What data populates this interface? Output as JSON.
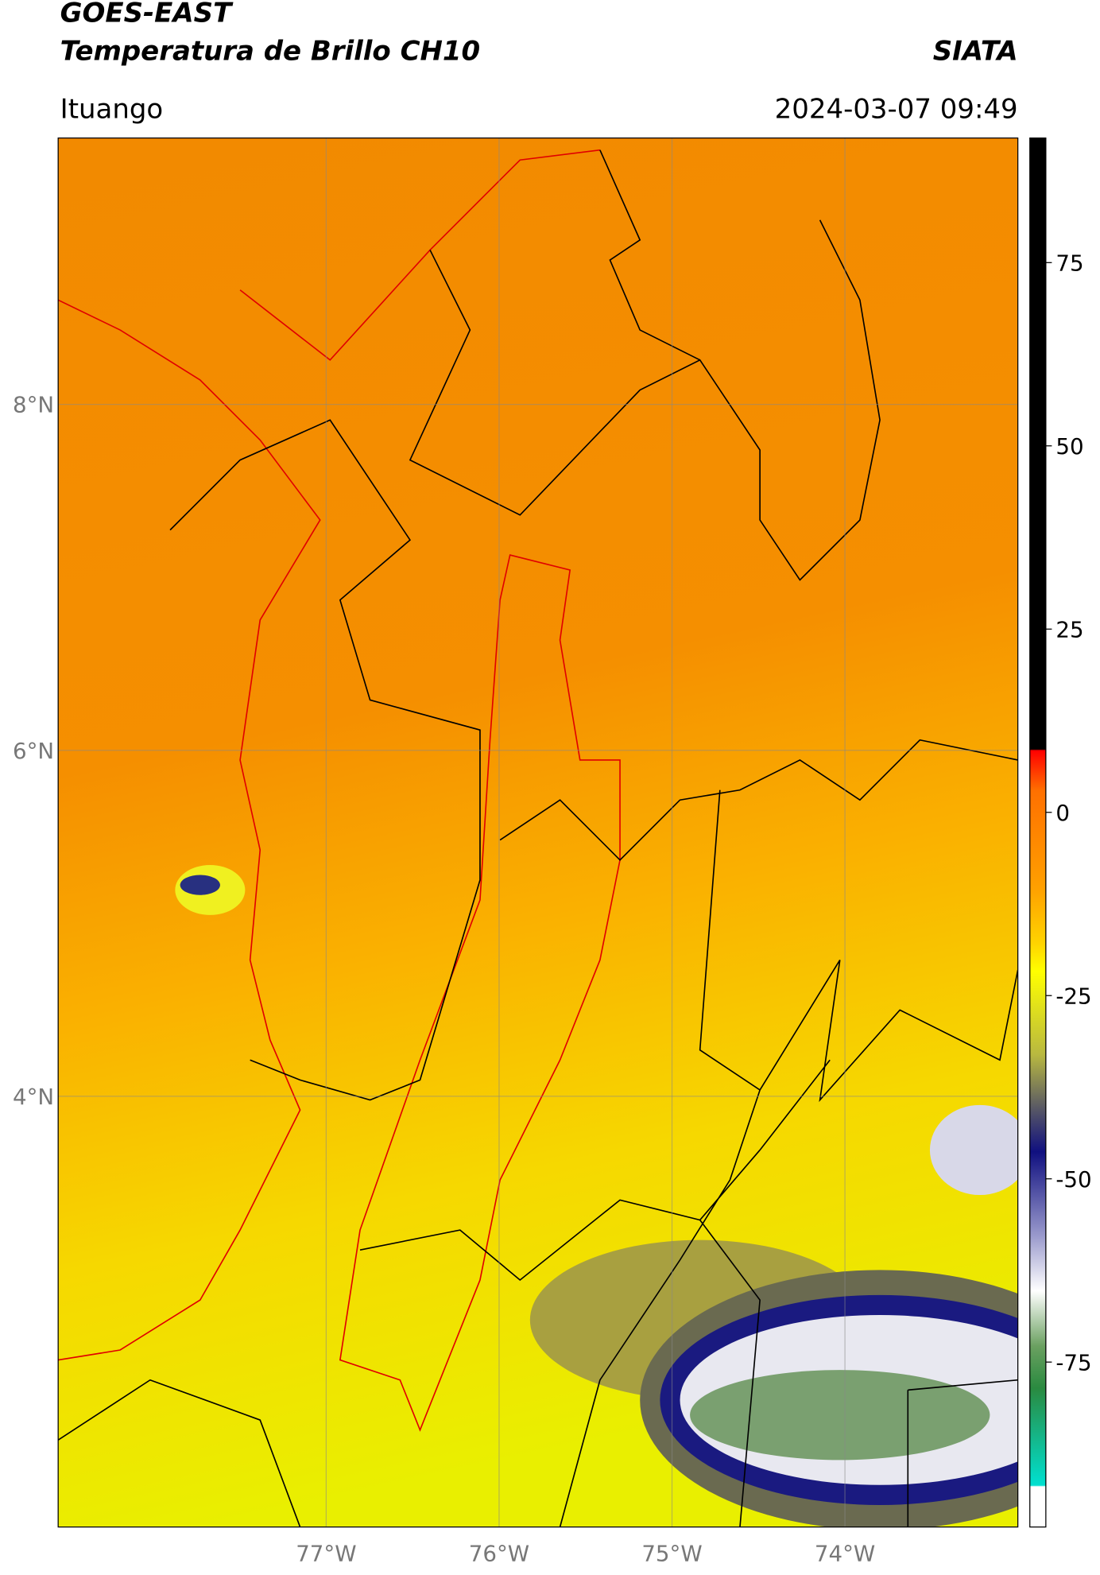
{
  "header": {
    "title": "GOES-EAST",
    "subtitle": "Temperatura de Brillo CH10",
    "source": "SIATA",
    "location": "Ituango",
    "timestamp": "2024-03-07 09:49"
  },
  "map": {
    "lat_range": [
      1.51,
      9.54
    ],
    "lon_range": [
      -78.55,
      -73.0
    ],
    "lat_ticks": [
      {
        "value": 8,
        "label": "8°N"
      },
      {
        "value": 6,
        "label": "6°N"
      },
      {
        "value": 4,
        "label": "4°N"
      }
    ],
    "lon_ticks": [
      {
        "value": -77,
        "label": "77°W"
      },
      {
        "value": -76,
        "label": "76°W"
      },
      {
        "value": -75,
        "label": "75°W"
      },
      {
        "value": -74,
        "label": "74°W"
      }
    ]
  },
  "colorbar": {
    "range": [
      -97.5,
      92
    ],
    "ticks": [
      75,
      50,
      25,
      0,
      -25,
      -50,
      -75
    ]
  }
}
